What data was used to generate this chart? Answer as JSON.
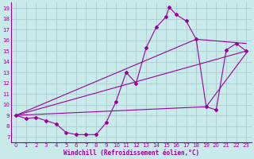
{
  "title": "",
  "xlabel": "Windchill (Refroidissement éolien,°C)",
  "ylabel": "",
  "bg_color": "#c8eaea",
  "line_color": "#990099",
  "grid_color": "#aacccc",
  "xlim": [
    -0.5,
    23.5
  ],
  "ylim": [
    6.5,
    19.5
  ],
  "xticks": [
    0,
    1,
    2,
    3,
    4,
    5,
    6,
    7,
    8,
    9,
    10,
    11,
    12,
    13,
    14,
    15,
    16,
    17,
    18,
    19,
    20,
    21,
    22,
    23
  ],
  "yticks": [
    7,
    8,
    9,
    10,
    11,
    12,
    13,
    14,
    15,
    16,
    17,
    18,
    19
  ],
  "main_series": [
    [
      0,
      9.0
    ],
    [
      1,
      8.7
    ],
    [
      2,
      8.8
    ],
    [
      3,
      8.5
    ],
    [
      4,
      8.2
    ],
    [
      5,
      7.4
    ],
    [
      6,
      7.2
    ],
    [
      7,
      7.2
    ],
    [
      8,
      7.2
    ],
    [
      9,
      8.3
    ],
    [
      10,
      10.3
    ],
    [
      11,
      13.0
    ],
    [
      12,
      12.0
    ],
    [
      13,
      15.3
    ],
    [
      14,
      17.2
    ],
    [
      15,
      18.2
    ],
    [
      15.3,
      19.1
    ],
    [
      16,
      18.4
    ],
    [
      17,
      17.8
    ],
    [
      18,
      16.1
    ],
    [
      19,
      9.8
    ],
    [
      20,
      9.5
    ],
    [
      21,
      15.1
    ],
    [
      22,
      15.7
    ],
    [
      23,
      15.0
    ]
  ],
  "line2": [
    [
      0,
      9.0
    ],
    [
      23,
      15.0
    ]
  ],
  "line3": [
    [
      0,
      9.0
    ],
    [
      19,
      9.8
    ],
    [
      23,
      14.8
    ]
  ],
  "line4": [
    [
      0,
      9.0
    ],
    [
      18,
      16.1
    ],
    [
      23,
      15.7
    ]
  ]
}
